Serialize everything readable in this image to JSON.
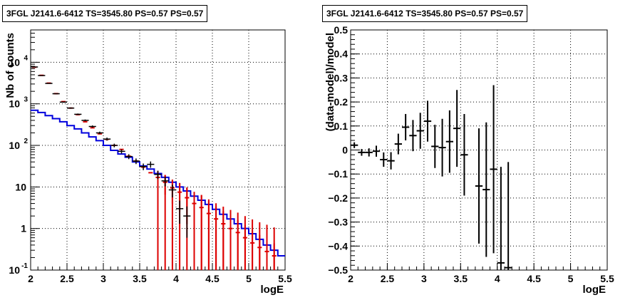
{
  "colors": {
    "data": "#000000",
    "model_total": "#dd0000",
    "model_source": "#0000dd",
    "grid": "#000000"
  },
  "left_panel": {
    "title": "3FGL J2141.6-6412 TS=3545.80 PS=0.57 PS=0.57"
  },
  "right_panel": {
    "title": "3FGL J2141.6-6412 TS=3545.80 PS=0.57 PS=0.57"
  },
  "chart_data": [
    {
      "type": "line",
      "title": "3FGL J2141.6-6412 TS=3545.80 PS=0.57 PS=0.57",
      "xlabel": "logE",
      "ylabel": "Nb of counts",
      "xlim": [
        2,
        5.5
      ],
      "ylim": [
        0.1,
        60000
      ],
      "yscale": "log",
      "grid": true,
      "xticks": [
        "2",
        "2.5",
        "3",
        "3.5",
        "4",
        "4.5",
        "5",
        "5.5"
      ],
      "yticks": [
        {
          "value": 0.1,
          "label": "10",
          "exp": "-1"
        },
        {
          "value": 1,
          "label": "1",
          "exp": ""
        },
        {
          "value": 10,
          "label": "10",
          "exp": ""
        },
        {
          "value": 100,
          "label": "10",
          "exp": "2"
        },
        {
          "value": 1000,
          "label": "10",
          "exp": "3"
        },
        {
          "value": 10000,
          "label": "10",
          "exp": "4"
        }
      ],
      "bin_width": 0.1,
      "series": [
        {
          "kind": "data_points",
          "x": [
            2.05,
            2.15,
            2.25,
            2.35,
            2.45,
            2.55,
            2.65,
            2.75,
            2.85,
            2.95,
            3.05,
            3.15,
            3.25,
            3.35,
            3.45,
            3.55,
            3.65,
            3.75,
            3.85,
            3.95,
            4.05,
            4.15
          ],
          "y": [
            7700,
            4800,
            3100,
            1750,
            1100,
            790,
            560,
            400,
            285,
            200,
            142,
            100,
            72,
            54,
            42,
            31,
            35,
            20,
            14,
            8.5,
            3,
            2
          ],
          "yerr": [
            90,
            70,
            56,
            42,
            33,
            28,
            24,
            20,
            17,
            14,
            12,
            10,
            8.5,
            7.3,
            6.5,
            5.6,
            6,
            4.5,
            3.7,
            2.9,
            1.7,
            1.4
          ]
        },
        {
          "kind": "model_total",
          "x": [
            2.05,
            2.15,
            2.25,
            2.35,
            2.45,
            2.55,
            2.65,
            2.75,
            2.85,
            2.95,
            3.05,
            3.15,
            3.25,
            3.35,
            3.45,
            3.55,
            3.65,
            3.75,
            3.85,
            3.95,
            4.05,
            4.15,
            4.25,
            4.35,
            4.45,
            4.55,
            4.65,
            4.75,
            4.85,
            4.95,
            5.05,
            5.15,
            5.25,
            5.35
          ],
          "y": [
            7600,
            4850,
            3150,
            1760,
            1130,
            790,
            550,
            370,
            265,
            190,
            140,
            100,
            80,
            55,
            42,
            30,
            22,
            17,
            13,
            9.5,
            7.5,
            5.5,
            4,
            3.2,
            2.3,
            1.7,
            1.3,
            1.0,
            0.8,
            0.6,
            0.45,
            0.35,
            0.28,
            0.22
          ]
        },
        {
          "kind": "model_source",
          "edges": [
            2.0,
            2.1,
            2.2,
            2.3,
            2.4,
            2.5,
            2.6,
            2.7,
            2.8,
            2.9,
            3.0,
            3.1,
            3.2,
            3.3,
            3.4,
            3.5,
            3.6,
            3.7,
            3.8,
            3.9,
            4.0,
            4.1,
            4.2,
            4.3,
            4.4,
            4.5,
            4.6,
            4.7,
            4.8,
            4.9,
            5.0,
            5.1,
            5.2,
            5.3,
            5.4,
            5.5
          ],
          "y": [
            700,
            620,
            520,
            440,
            370,
            300,
            250,
            200,
            160,
            130,
            100,
            76,
            62,
            52,
            40,
            32,
            27,
            21,
            17,
            13,
            10,
            8,
            6,
            4.8,
            3.8,
            2.9,
            2.2,
            1.7,
            1.3,
            1.0,
            0.75,
            0.55,
            0.4,
            0.3,
            0.22
          ]
        }
      ]
    },
    {
      "type": "scatter",
      "title": "3FGL J2141.6-6412 TS=3545.80 PS=0.57 PS=0.57",
      "xlabel": "logE",
      "ylabel": "(data-model)/model",
      "xlim": [
        2,
        5.5
      ],
      "ylim": [
        -0.5,
        0.5
      ],
      "grid": true,
      "xticks": [
        "2",
        "2.5",
        "3",
        "3.5",
        "4",
        "4.5",
        "5",
        "5.5"
      ],
      "yticks": [
        "−0.5",
        "−0.4",
        "−0.3",
        "−0.2",
        "−0.1",
        "0",
        "0.1",
        "0.2",
        "0.3",
        "0.4",
        "0.5"
      ],
      "bin_width": 0.1,
      "series": [
        {
          "kind": "residuals",
          "x": [
            2.05,
            2.15,
            2.25,
            2.35,
            2.45,
            2.55,
            2.65,
            2.75,
            2.85,
            2.95,
            3.05,
            3.15,
            3.25,
            3.35,
            3.45,
            3.55,
            3.75,
            3.85,
            3.95,
            4.05,
            4.15
          ],
          "y": [
            0.02,
            -0.01,
            -0.01,
            -0.005,
            -0.04,
            -0.045,
            0.025,
            0.095,
            0.06,
            0.08,
            0.12,
            0.015,
            0.01,
            0.035,
            0.09,
            -0.02,
            -0.15,
            -0.165,
            -0.08,
            -0.47,
            -0.49
          ],
          "yerr": [
            0.012,
            0.014,
            0.017,
            0.023,
            0.03,
            0.036,
            0.043,
            0.055,
            0.065,
            0.075,
            0.085,
            0.09,
            0.12,
            0.13,
            0.16,
            0.17,
            0.24,
            0.28,
            0.35,
            0.4,
            0.44
          ]
        }
      ]
    }
  ]
}
